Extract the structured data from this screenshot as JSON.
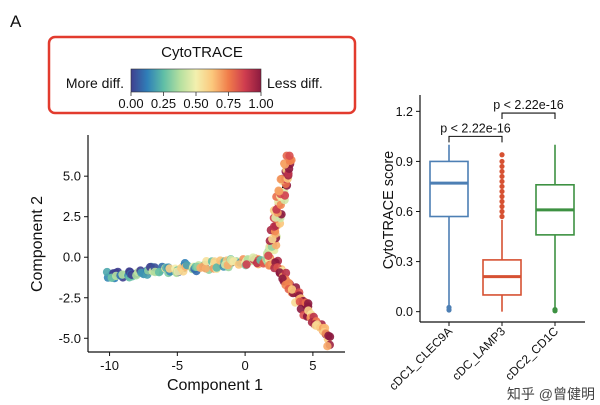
{
  "panel_label": "A",
  "chart_data": [
    {
      "type": "scatter",
      "xlabel": "Component 1",
      "ylabel": "Component 2",
      "xlim": [
        -11,
        7
      ],
      "ylim": [
        -5.6,
        6.8
      ],
      "x_ticks": [
        -10,
        -5,
        0,
        5
      ],
      "y_ticks": [
        -5.0,
        -2.5,
        0.0,
        2.5,
        5.0
      ],
      "x_tick_labels": [
        "-10",
        "-5",
        "0",
        "5"
      ],
      "y_tick_labels": [
        "-5.0",
        "-2.5",
        "0.0",
        "2.5",
        "5.0"
      ],
      "grid": false,
      "trajectory": [
        {
          "x": [
            -10,
            -7,
            -4,
            -1,
            1.8
          ],
          "y": [
            -1.1,
            -1.0,
            -0.8,
            -0.5,
            -0.1
          ]
        },
        {
          "x": [
            1.8,
            2.2,
            2.8,
            3.2
          ],
          "y": [
            -0.1,
            2.0,
            4.3,
            5.6
          ]
        },
        {
          "x": [
            1.8,
            3.2,
            4.8,
            6.0
          ],
          "y": [
            -0.1,
            -1.8,
            -3.6,
            -4.8
          ]
        }
      ],
      "branches": [
        {
          "x0": -10.2,
          "y0": -1.15,
          "x1": 1.8,
          "y1": -0.1,
          "n": 120,
          "spread": 0.28,
          "score_start": 0.05,
          "score_end": 0.6
        },
        {
          "x0": 1.8,
          "y0": -0.1,
          "x1": 3.2,
          "y1": 6.2,
          "n": 70,
          "spread": 0.3,
          "score_start": 0.6,
          "score_end": 0.9
        },
        {
          "x0": 1.8,
          "y0": -0.1,
          "x1": 6.3,
          "y1": -5.2,
          "n": 70,
          "spread": 0.3,
          "score_start": 0.7,
          "score_end": 0.95
        }
      ],
      "colorbar": {
        "title": "CytoTRACE",
        "left_label": "More diff.",
        "right_label": "Less diff.",
        "ticks": [
          "0.00",
          "0.25",
          "0.50",
          "0.75",
          "1.00"
        ],
        "colors": [
          "#3f3f8f",
          "#2f7fb8",
          "#5fbea6",
          "#b3df9f",
          "#f3f0ae",
          "#fbc77c",
          "#f07c4a",
          "#cf3d4f",
          "#8c1a3f"
        ],
        "border_color": "#e23b2e"
      }
    },
    {
      "type": "box",
      "ylabel": "CytoTRACE score",
      "ylim": [
        -0.05,
        1.25
      ],
      "y_ticks": [
        0.0,
        0.3,
        0.6,
        0.9,
        1.2
      ],
      "y_tick_labels": [
        "0.0",
        "0.3",
        "0.6",
        "0.9",
        "1.2"
      ],
      "categories": [
        "cDC1_CLEC9A",
        "cDC_LAMP3",
        "cDC2_CD1C"
      ],
      "colors": [
        "#4d7fb4",
        "#d65132",
        "#3d9142"
      ],
      "boxes": [
        {
          "q1": 0.57,
          "median": 0.77,
          "q3": 0.9,
          "whisker_low": 0.03,
          "whisker_high": 1.0,
          "outliers": [
            0.01,
            0.025
          ]
        },
        {
          "q1": 0.1,
          "median": 0.21,
          "q3": 0.31,
          "whisker_low": 0.0,
          "whisker_high": 0.55,
          "outliers": [
            0.57,
            0.6,
            0.63,
            0.66,
            0.69,
            0.72,
            0.75,
            0.78,
            0.81,
            0.84,
            0.87,
            0.9,
            0.94
          ]
        },
        {
          "q1": 0.46,
          "median": 0.61,
          "q3": 0.76,
          "whisker_low": 0.02,
          "whisker_high": 1.0,
          "outliers": [
            0.005,
            0.012
          ]
        }
      ],
      "comparisons": [
        {
          "from": 0,
          "to": 1,
          "label": "p < 2.22e-16",
          "y": 1.05
        },
        {
          "from": 1,
          "to": 2,
          "label": "p < 2.22e-16",
          "y": 1.19
        }
      ]
    }
  ],
  "watermark": "知乎 @曾健明"
}
